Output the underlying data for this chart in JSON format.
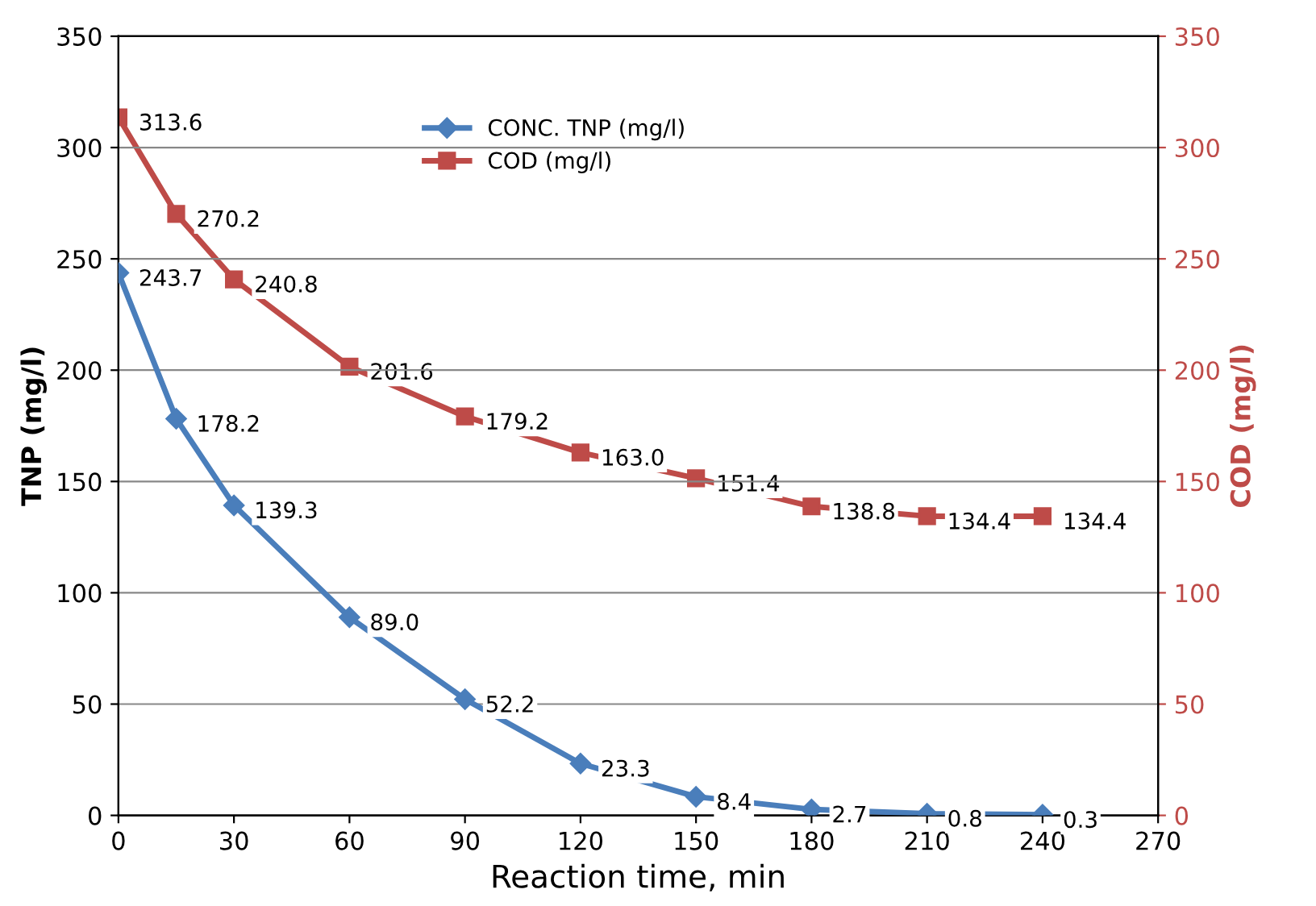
{
  "chart_data": {
    "type": "line",
    "xlabel": "Reaction time, min",
    "ylabel": "TNP (mg/l)",
    "y2label": "COD (mg/l)",
    "x": [
      0,
      15,
      30,
      60,
      90,
      120,
      150,
      180,
      210,
      240
    ],
    "xlim": [
      0,
      270
    ],
    "xticks": [
      0,
      30,
      60,
      90,
      120,
      150,
      180,
      210,
      240,
      270
    ],
    "ylim": [
      0,
      350
    ],
    "yticks": [
      0,
      50,
      100,
      150,
      200,
      250,
      300,
      350
    ],
    "y2lim": [
      0,
      350
    ],
    "y2ticks": [
      0,
      50,
      100,
      150,
      200,
      250,
      300,
      350
    ],
    "grid": "y",
    "legend": "top",
    "line_style": "solid",
    "series": [
      {
        "name": "CONC. TNP (mg/l)",
        "color": "#4a7ebb",
        "marker": "diamond",
        "values": [
          243.7,
          178.2,
          139.3,
          89.0,
          52.2,
          23.3,
          8.4,
          2.7,
          0.8,
          0.3
        ],
        "value_labels": [
          "243.7",
          "178.2",
          "139.3",
          "89.0",
          "52.2",
          "23.3",
          "8.4",
          "2.7",
          "0.8",
          "0.3"
        ]
      },
      {
        "name": "COD (mg/l)",
        "color": "#be4b48",
        "marker": "square",
        "axis": "y2",
        "values": [
          313.6,
          270.2,
          240.8,
          201.6,
          179.2,
          163.0,
          151.4,
          138.8,
          134.4,
          134.4
        ],
        "value_labels": [
          "313.6",
          "270.2",
          "240.8",
          "201.6",
          "179.2",
          "163.0",
          "151.4",
          "138.8",
          "134.4",
          "134.4"
        ]
      }
    ]
  }
}
